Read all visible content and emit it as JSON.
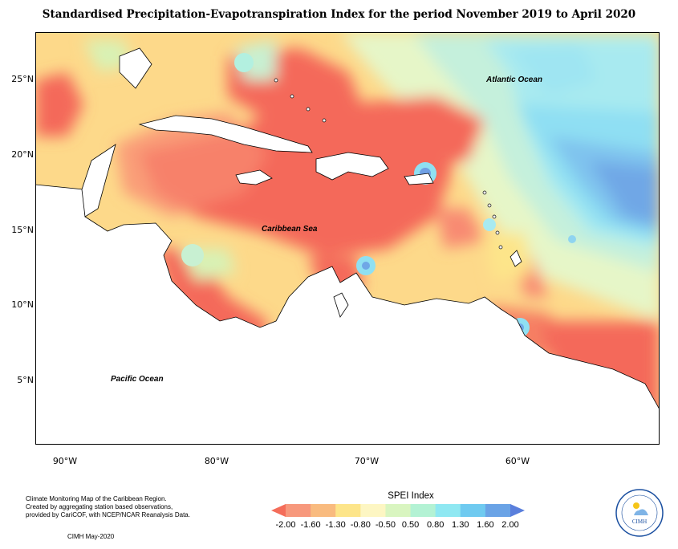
{
  "title": "Standardised Precipitation-Evapotranspiration Index for the period November 2019 to April 2020",
  "map": {
    "labels": {
      "atlantic": "Atlantic Ocean",
      "caribbean": "Caribbean Sea",
      "pacific": "Pacific Ocean"
    },
    "lat_ticks": [
      "25°N",
      "20°N",
      "15°N",
      "10°N",
      "5°N"
    ],
    "lon_ticks": [
      "90°W",
      "80°W",
      "70°W",
      "60°W"
    ]
  },
  "legend": {
    "title": "SPEI Index",
    "ticks": [
      "-2.00",
      "-1.60",
      "-1.30",
      "-0.80",
      "-0.50",
      "0.50",
      "0.80",
      "1.30",
      "1.60",
      "2.00"
    ],
    "colors": [
      "#f46d5a",
      "#f7987c",
      "#f9bb7f",
      "#fde58a",
      "#fdf6c3",
      "#d9f5c0",
      "#b3f2d4",
      "#8fe8f2",
      "#6fcaf0",
      "#6aa3e6",
      "#5a7fdc"
    ]
  },
  "footer": {
    "lines": [
      "Climate Monitoring Map of the Caribbean Region.",
      "Created by aggregating station based observations,",
      "provided by CariCOF, with NCEP/NCAR Reanalysis Data."
    ],
    "credit": "CIMH May-2020"
  },
  "logo": {
    "text": "CIMH"
  }
}
